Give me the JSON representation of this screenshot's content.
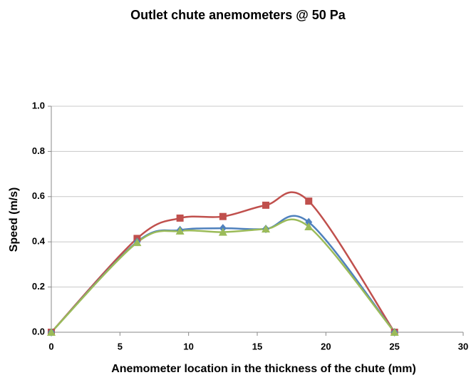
{
  "chart_data": {
    "type": "line",
    "title": "Outlet chute anemometers @ 50 Pa",
    "x_label": "Anemometer location in the thickness of the chute (mm)",
    "y_label": "Speed (m/s)",
    "x": [
      0,
      6.25,
      9.375,
      12.5,
      15.625,
      18.75,
      25
    ],
    "series": [
      {
        "color": "#c0504d",
        "marker": "square",
        "values": [
          0,
          0.415,
          0.505,
          0.512,
          0.562,
          0.58,
          0
        ]
      },
      {
        "color": "#4f81bd",
        "marker": "diamond",
        "values": [
          0,
          0.4,
          0.452,
          0.46,
          0.457,
          0.487,
          0
        ]
      },
      {
        "color": "#9bbb59",
        "marker": "triangle",
        "values": [
          0,
          0.397,
          0.448,
          0.443,
          0.457,
          0.467,
          0
        ]
      }
    ],
    "smooth": true,
    "xlim": [
      0,
      30
    ],
    "xticks": [
      0,
      5,
      10,
      15,
      20,
      25,
      30
    ],
    "ylim": [
      0,
      1
    ],
    "yticks": [
      {
        "value": 0,
        "label": "0.0"
      },
      {
        "value": 0.2,
        "label": "0.2"
      },
      {
        "value": 0.4,
        "label": "0.4"
      },
      {
        "value": 0.6,
        "label": "0.6"
      },
      {
        "value": 0.8,
        "label": "0.8"
      },
      {
        "value": 1,
        "label": "1.0"
      }
    ],
    "grid": true
  }
}
